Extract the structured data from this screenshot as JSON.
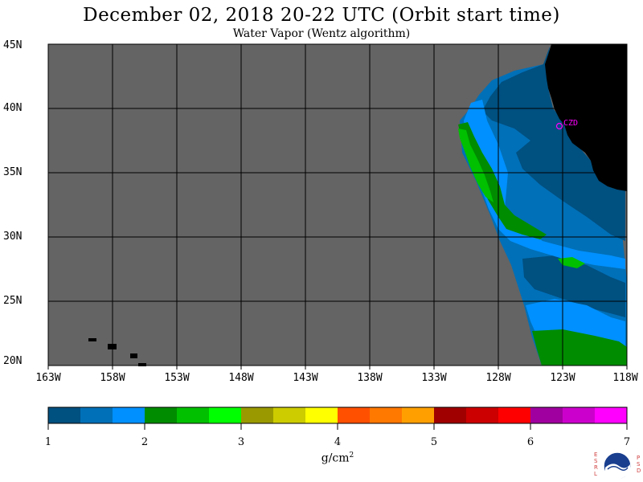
{
  "title": "December 02, 2018  20-22 UTC  (Orbit start time)",
  "subtitle": "Water Vapor (Wentz algorithm)",
  "station_label": "CZD",
  "lat_ticks": [
    "45N",
    "40N",
    "35N",
    "30N",
    "25N",
    "20N"
  ],
  "lon_ticks": [
    "163W",
    "158W",
    "153W",
    "148W",
    "143W",
    "138W",
    "133W",
    "128W",
    "123W",
    "118W"
  ],
  "colorbar": {
    "ticks": [
      "1",
      "2",
      "3",
      "4",
      "5",
      "6",
      "7"
    ],
    "units_base": "g/cm",
    "units_exp": "2",
    "colors": [
      "#005080",
      "#0070b8",
      "#0090ff",
      "#008c00",
      "#00c000",
      "#00ff00",
      "#9a9a00",
      "#cccc00",
      "#ffff00",
      "#ff5000",
      "#ff7800",
      "#ffa000",
      "#a00000",
      "#cc0000",
      "#ff0000",
      "#a000a0",
      "#cc00cc",
      "#ff00ff"
    ]
  },
  "logo": {
    "left_letters": "ESRL",
    "right_letters": "PSD",
    "center": "NOAA"
  },
  "colors": {
    "land": "#000000",
    "no_data": "#646464",
    "grid": "#000000",
    "station": "#ff00ff"
  }
}
